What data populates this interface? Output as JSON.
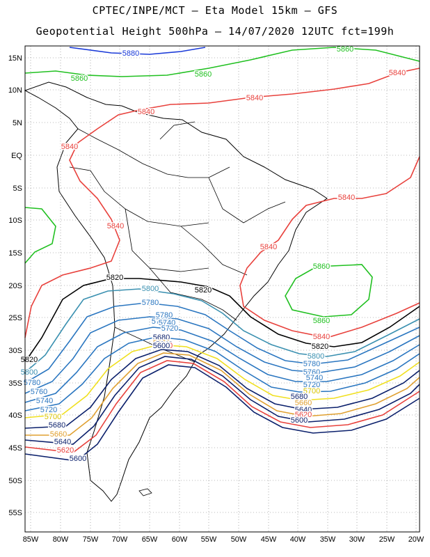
{
  "header": {
    "line1": "CPTEC/INPE/MCT –  Eta Model 15km – GFS",
    "line2": "Geopotential Height 500hPa – 14/07/2020 12UTC fct=199h"
  },
  "map": {
    "lat_labels": [
      "15N",
      "10N",
      "5N",
      "EQ",
      "5S",
      "10S",
      "15S",
      "20S",
      "25S",
      "30S",
      "35S",
      "40S",
      "45S",
      "50S",
      "55S"
    ],
    "lon_labels": [
      "85W",
      "80W",
      "75W",
      "70W",
      "65W",
      "60W",
      "55W",
      "50W",
      "45W",
      "40W",
      "35W",
      "30W",
      "25W",
      "20W"
    ],
    "grid": "dotted",
    "contour_levels": [
      {
        "value": "5600",
        "color": "#0a1f6b"
      },
      {
        "value": "5620",
        "color": "#e8413c"
      },
      {
        "value": "5640",
        "color": "#0a1f6b"
      },
      {
        "value": "5660",
        "color": "#e0a030"
      },
      {
        "value": "5680",
        "color": "#0a1f6b"
      },
      {
        "value": "5700",
        "color": "#f0e020"
      },
      {
        "value": "5720",
        "color": "#2a76c0"
      },
      {
        "value": "5740",
        "color": "#2a76c0"
      },
      {
        "value": "5760",
        "color": "#2a76c0"
      },
      {
        "value": "5780",
        "color": "#2a76c0"
      },
      {
        "value": "5800",
        "color": "#3a90b0"
      },
      {
        "value": "5820",
        "color": "#000000"
      },
      {
        "value": "5840",
        "color": "#e8413c"
      },
      {
        "value": "5860",
        "color": "#20c020"
      },
      {
        "value": "5880",
        "color": "#1a3ad8"
      }
    ],
    "contour_labels": [
      {
        "text": "5880",
        "color": "#1a3ad8"
      },
      {
        "text": "5860",
        "color": "#20c020"
      },
      {
        "text": "5860",
        "color": "#20c020"
      },
      {
        "text": "5860",
        "color": "#20c020"
      },
      {
        "text": "5860",
        "color": "#20c020"
      },
      {
        "text": "5860",
        "color": "#20c020"
      },
      {
        "text": "5840",
        "color": "#e8413c"
      },
      {
        "text": "5840",
        "color": "#e8413c"
      },
      {
        "text": "5840",
        "color": "#e8413c"
      },
      {
        "text": "5840",
        "color": "#e8413c"
      },
      {
        "text": "5840",
        "color": "#e8413c"
      },
      {
        "text": "5840",
        "color": "#e8413c"
      },
      {
        "text": "5840",
        "color": "#e8413c"
      },
      {
        "text": "5840",
        "color": "#e8413c"
      },
      {
        "text": "5820",
        "color": "#000000"
      },
      {
        "text": "5820",
        "color": "#000000"
      },
      {
        "text": "5820",
        "color": "#000000"
      },
      {
        "text": "5820",
        "color": "#000000"
      },
      {
        "text": "5800",
        "color": "#3a90b0"
      },
      {
        "text": "5800",
        "color": "#3a90b0"
      },
      {
        "text": "5800",
        "color": "#3a90b0"
      },
      {
        "text": "5780",
        "color": "#2a76c0"
      },
      {
        "text": "5780",
        "color": "#2a76c0"
      },
      {
        "text": "5780",
        "color": "#2a76c0"
      },
      {
        "text": "5780",
        "color": "#2a76c0"
      },
      {
        "text": "5760",
        "color": "#2a76c0"
      },
      {
        "text": "5760",
        "color": "#2a76c0"
      },
      {
        "text": "5760",
        "color": "#2a76c0"
      },
      {
        "text": "5740",
        "color": "#2a76c0"
      },
      {
        "text": "5740",
        "color": "#2a76c0"
      },
      {
        "text": "5740",
        "color": "#2a76c0"
      },
      {
        "text": "5720",
        "color": "#2a76c0"
      },
      {
        "text": "5720",
        "color": "#2a76c0"
      },
      {
        "text": "5720",
        "color": "#2a76c0"
      },
      {
        "text": "5700",
        "color": "#d9c400"
      },
      {
        "text": "5700",
        "color": "#d9c400"
      },
      {
        "text": "5700",
        "color": "#d9c400"
      },
      {
        "text": "5680",
        "color": "#0a1f6b"
      },
      {
        "text": "5680",
        "color": "#0a1f6b"
      },
      {
        "text": "5680",
        "color": "#0a1f6b"
      },
      {
        "text": "5660",
        "color": "#e0a030"
      },
      {
        "text": "5660",
        "color": "#e0a030"
      },
      {
        "text": "5660",
        "color": "#e0a030"
      },
      {
        "text": "5640",
        "color": "#0a1f6b"
      },
      {
        "text": "5640",
        "color": "#0a1f6b"
      },
      {
        "text": "5640",
        "color": "#0a1f6b"
      },
      {
        "text": "5620",
        "color": "#e8413c"
      },
      {
        "text": "5620",
        "color": "#e8413c"
      },
      {
        "text": "5620",
        "color": "#e8413c"
      },
      {
        "text": "5600",
        "color": "#0a1f6b"
      },
      {
        "text": "5600",
        "color": "#0a1f6b"
      },
      {
        "text": "5600",
        "color": "#0a1f6b"
      }
    ]
  }
}
